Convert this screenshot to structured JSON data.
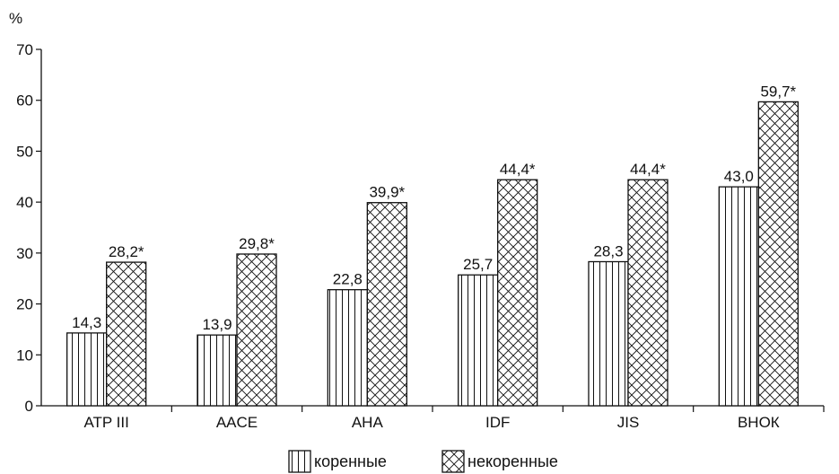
{
  "chart_data": {
    "type": "bar",
    "title": "",
    "xlabel": "",
    "ylabel": "%",
    "ylim": [
      0,
      70
    ],
    "yticks": [
      0,
      10,
      20,
      30,
      40,
      50,
      60,
      70
    ],
    "grid": false,
    "legend_position": "bottom",
    "categories": [
      "ATP III",
      "AACE",
      "AHA",
      "IDF",
      "JIS",
      "ВНОК"
    ],
    "series": [
      {
        "name": "коренные",
        "pattern": "vertical-stripes",
        "values": [
          14.3,
          13.9,
          22.8,
          25.7,
          28.3,
          43.0
        ],
        "labels": [
          "14,3",
          "13,9",
          "22,8",
          "25,7",
          "28,3",
          "43,0"
        ]
      },
      {
        "name": "некоренные",
        "pattern": "crosshatch",
        "values": [
          28.2,
          29.8,
          39.9,
          44.4,
          44.4,
          59.7
        ],
        "labels": [
          "28,2*",
          "29,8*",
          "39,9*",
          "44,4*",
          "44,4*",
          "59,7*"
        ]
      }
    ]
  }
}
